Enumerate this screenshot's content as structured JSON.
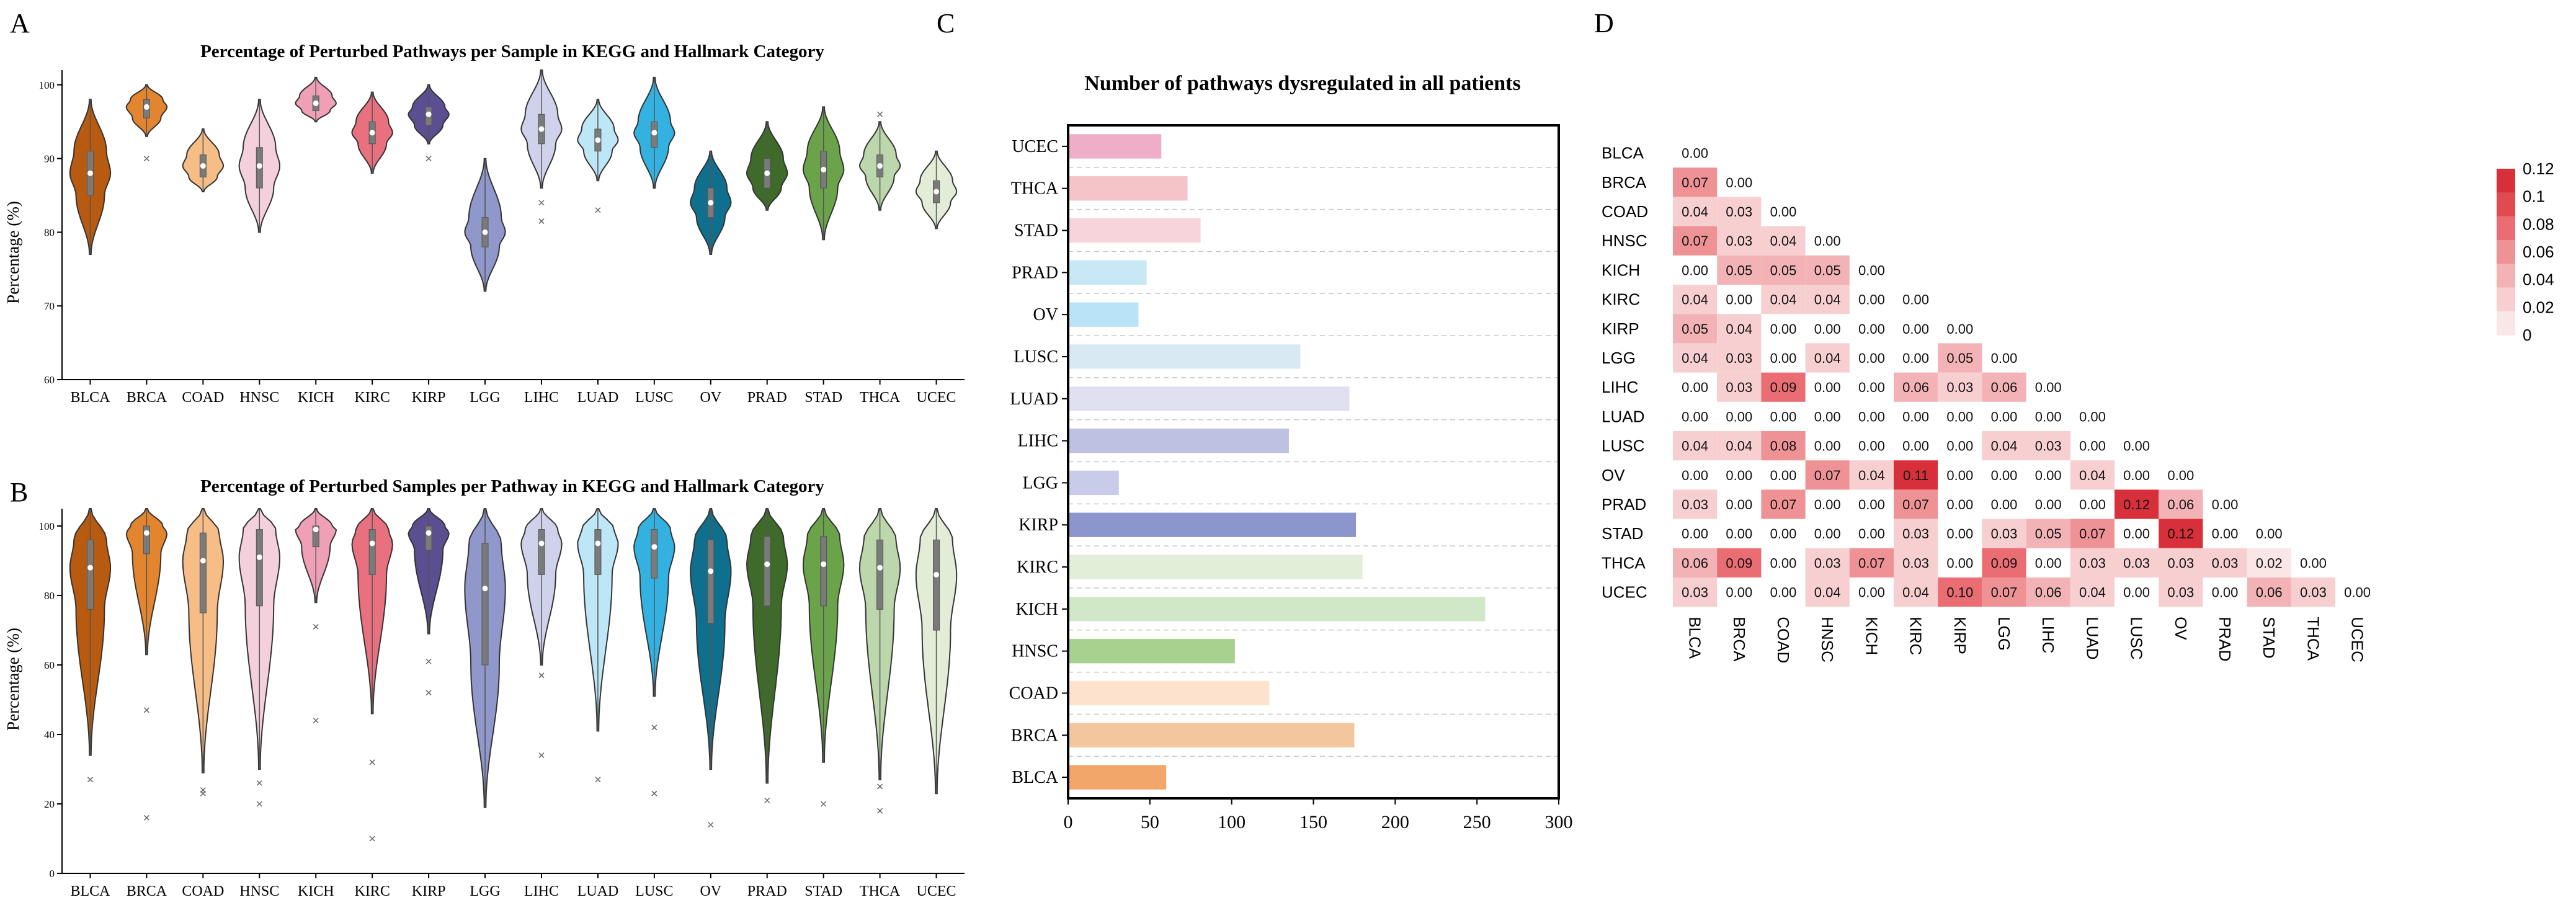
{
  "chart_data": [
    {
      "id": "A",
      "type": "violin",
      "panel_label": "A",
      "title": "Percentage of Perturbed Pathways per Sample in KEGG and Hallmark Category",
      "ylabel": "Percentage (%)",
      "ylim": [
        60,
        102
      ],
      "yticks": [
        60,
        70,
        80,
        90,
        100
      ],
      "categories": [
        "BLCA",
        "BRCA",
        "COAD",
        "HNSC",
        "KICH",
        "KIRC",
        "KIRP",
        "LGG",
        "LIHC",
        "LUAD",
        "LUSC",
        "OV",
        "PRAD",
        "STAD",
        "THCA",
        "UCEC"
      ],
      "colors": [
        "#b85a10",
        "#e2852e",
        "#f6bd87",
        "#f4cfdc",
        "#ef9fb6",
        "#e9707f",
        "#5b4e91",
        "#8f97cb",
        "#cfd2ea",
        "#bde7f7",
        "#33b1e1",
        "#0e6f8e",
        "#3e6b2a",
        "#6aa34a",
        "#bcd7ac",
        "#e2ecd6"
      ],
      "series": [
        {
          "name": "BLCA",
          "min": 77,
          "q1": 85,
          "median": 88,
          "q3": 91,
          "max": 98,
          "outliers": []
        },
        {
          "name": "BRCA",
          "min": 93,
          "q1": 95.5,
          "median": 97,
          "q3": 98,
          "max": 100,
          "outliers": [
            90
          ]
        },
        {
          "name": "COAD",
          "min": 85.5,
          "q1": 87.5,
          "median": 89,
          "q3": 90.5,
          "max": 94,
          "outliers": []
        },
        {
          "name": "HNSC",
          "min": 80,
          "q1": 86,
          "median": 89,
          "q3": 91.5,
          "max": 98,
          "outliers": []
        },
        {
          "name": "KICH",
          "min": 95,
          "q1": 96.5,
          "median": 97.5,
          "q3": 98.5,
          "max": 101,
          "outliers": []
        },
        {
          "name": "KIRC",
          "min": 88,
          "q1": 92,
          "median": 93.5,
          "q3": 95,
          "max": 99,
          "outliers": []
        },
        {
          "name": "KIRP",
          "min": 92,
          "q1": 94.5,
          "median": 96,
          "q3": 97,
          "max": 100,
          "outliers": [
            90
          ]
        },
        {
          "name": "LGG",
          "min": 72,
          "q1": 78,
          "median": 80,
          "q3": 82,
          "max": 90,
          "outliers": []
        },
        {
          "name": "LIHC",
          "min": 86,
          "q1": 92,
          "median": 94,
          "q3": 96,
          "max": 102,
          "outliers": [
            84,
            81.5
          ]
        },
        {
          "name": "LUAD",
          "min": 87,
          "q1": 91,
          "median": 92.5,
          "q3": 94,
          "max": 98,
          "outliers": [
            83
          ]
        },
        {
          "name": "LUSC",
          "min": 86,
          "q1": 91.5,
          "median": 93.5,
          "q3": 95,
          "max": 101,
          "outliers": []
        },
        {
          "name": "OV",
          "min": 77,
          "q1": 82,
          "median": 84,
          "q3": 86,
          "max": 91,
          "outliers": []
        },
        {
          "name": "PRAD",
          "min": 83,
          "q1": 86,
          "median": 88,
          "q3": 90,
          "max": 95,
          "outliers": []
        },
        {
          "name": "STAD",
          "min": 79,
          "q1": 86,
          "median": 88.5,
          "q3": 91,
          "max": 97,
          "outliers": []
        },
        {
          "name": "THCA",
          "min": 83,
          "q1": 87.5,
          "median": 89,
          "q3": 90.5,
          "max": 95,
          "outliers": [
            96
          ]
        },
        {
          "name": "UCEC",
          "min": 80.5,
          "q1": 84,
          "median": 85.5,
          "q3": 87,
          "max": 91,
          "outliers": []
        }
      ]
    },
    {
      "id": "B",
      "type": "violin",
      "panel_label": "B",
      "title": "Percentage of Perturbed Samples per Pathway in KEGG and Hallmark Category",
      "ylabel": "Percentage (%)",
      "ylim": [
        0,
        105
      ],
      "yticks": [
        0,
        20,
        40,
        60,
        80,
        100
      ],
      "categories": [
        "BLCA",
        "BRCA",
        "COAD",
        "HNSC",
        "KICH",
        "KIRC",
        "KIRP",
        "LGG",
        "LIHC",
        "LUAD",
        "LUSC",
        "OV",
        "PRAD",
        "STAD",
        "THCA",
        "UCEC"
      ],
      "colors": [
        "#b85a10",
        "#e2852e",
        "#f6bd87",
        "#f4cfdc",
        "#ef9fb6",
        "#e9707f",
        "#5b4e91",
        "#8f97cb",
        "#cfd2ea",
        "#bde7f7",
        "#33b1e1",
        "#0e6f8e",
        "#3e6b2a",
        "#6aa34a",
        "#bcd7ac",
        "#e2ecd6"
      ],
      "series": [
        {
          "name": "BLCA",
          "min": 34,
          "q1": 76,
          "median": 88,
          "q3": 96,
          "max": 105,
          "outliers": [
            27
          ]
        },
        {
          "name": "BRCA",
          "min": 63,
          "q1": 92,
          "median": 98,
          "q3": 100,
          "max": 105,
          "outliers": [
            47,
            16
          ]
        },
        {
          "name": "COAD",
          "min": 29,
          "q1": 75,
          "median": 90,
          "q3": 98,
          "max": 105,
          "outliers": [
            24,
            23
          ]
        },
        {
          "name": "HNSC",
          "min": 30,
          "q1": 77,
          "median": 91,
          "q3": 99,
          "max": 105,
          "outliers": [
            26,
            20
          ]
        },
        {
          "name": "KICH",
          "min": 78,
          "q1": 94,
          "median": 99,
          "q3": 100,
          "max": 105,
          "outliers": [
            71,
            44
          ]
        },
        {
          "name": "KIRC",
          "min": 46,
          "q1": 86,
          "median": 95,
          "q3": 99,
          "max": 105,
          "outliers": [
            32,
            10
          ]
        },
        {
          "name": "KIRP",
          "min": 69,
          "q1": 93,
          "median": 98,
          "q3": 100,
          "max": 105,
          "outliers": [
            61,
            52
          ]
        },
        {
          "name": "LGG",
          "min": 19,
          "q1": 60,
          "median": 82,
          "q3": 95,
          "max": 105,
          "outliers": []
        },
        {
          "name": "LIHC",
          "min": 60,
          "q1": 86,
          "median": 95,
          "q3": 99,
          "max": 105,
          "outliers": [
            57,
            34
          ]
        },
        {
          "name": "LUAD",
          "min": 41,
          "q1": 86,
          "median": 95,
          "q3": 99,
          "max": 105,
          "outliers": [
            27
          ]
        },
        {
          "name": "LUSC",
          "min": 51,
          "q1": 85,
          "median": 94,
          "q3": 99,
          "max": 105,
          "outliers": [
            42,
            23
          ]
        },
        {
          "name": "OV",
          "min": 30,
          "q1": 72,
          "median": 87,
          "q3": 96,
          "max": 105,
          "outliers": [
            14
          ]
        },
        {
          "name": "PRAD",
          "min": 26,
          "q1": 77,
          "median": 89,
          "q3": 97,
          "max": 105,
          "outliers": [
            21
          ]
        },
        {
          "name": "STAD",
          "min": 32,
          "q1": 77,
          "median": 89,
          "q3": 97,
          "max": 105,
          "outliers": [
            20
          ]
        },
        {
          "name": "THCA",
          "min": 27,
          "q1": 76,
          "median": 88,
          "q3": 96,
          "max": 105,
          "outliers": [
            25,
            18
          ]
        },
        {
          "name": "UCEC",
          "min": 23,
          "q1": 70,
          "median": 86,
          "q3": 96,
          "max": 105,
          "outliers": []
        }
      ]
    },
    {
      "id": "C",
      "type": "bar",
      "orientation": "horizontal",
      "panel_label": "C",
      "title": "Number of  pathways dysregulated in all patients",
      "categories": [
        "UCEC",
        "THCA",
        "STAD",
        "PRAD",
        "OV",
        "LUSC",
        "LUAD",
        "LIHC",
        "LGG",
        "KIRP",
        "KIRC",
        "KICH",
        "HNSC",
        "COAD",
        "BRCA",
        "BLCA"
      ],
      "values": [
        57,
        73,
        81,
        48,
        43,
        142,
        172,
        135,
        31,
        176,
        180,
        255,
        102,
        123,
        175,
        60
      ],
      "colors": [
        "#eeaec8",
        "#f5c4c9",
        "#f7d3db",
        "#c8e8f6",
        "#b9e3f6",
        "#d8e9f3",
        "#e1e0f1",
        "#bfc1e3",
        "#c9cbea",
        "#8c95cc",
        "#e3eed9",
        "#d0e8c8",
        "#a8d08e",
        "#fde2cd",
        "#f4c69d",
        "#f3a66a"
      ],
      "xlim": [
        0,
        300
      ],
      "xticks": [
        0,
        50,
        100,
        150,
        200,
        250,
        300
      ],
      "grid": true
    },
    {
      "id": "D",
      "type": "heatmap",
      "panel_label": "D",
      "rows": [
        "BLCA",
        "BRCA",
        "COAD",
        "HNSC",
        "KICH",
        "KIRC",
        "KIRP",
        "LGG",
        "LIHC",
        "LUAD",
        "LUSC",
        "OV",
        "PRAD",
        "STAD",
        "THCA",
        "UCEC"
      ],
      "cols": [
        "BLCA",
        "BRCA",
        "COAD",
        "HNSC",
        "KICH",
        "KIRC",
        "KIRP",
        "LGG",
        "LIHC",
        "LUAD",
        "LUSC",
        "OV",
        "PRAD",
        "STAD",
        "THCA",
        "UCEC"
      ],
      "values": [
        [
          0.0
        ],
        [
          0.07,
          0.0
        ],
        [
          0.04,
          0.03,
          0.0
        ],
        [
          0.07,
          0.03,
          0.04,
          0.0
        ],
        [
          0.0,
          0.05,
          0.05,
          0.05,
          0.0
        ],
        [
          0.04,
          0.0,
          0.04,
          0.04,
          0.0,
          0.0
        ],
        [
          0.05,
          0.04,
          0.0,
          0.0,
          0.0,
          0.0,
          0.0
        ],
        [
          0.04,
          0.03,
          0.0,
          0.04,
          0.0,
          0.0,
          0.05,
          0.0
        ],
        [
          0.0,
          0.03,
          0.09,
          0.0,
          0.0,
          0.06,
          0.03,
          0.06,
          0.0
        ],
        [
          0.0,
          0.0,
          0.0,
          0.0,
          0.0,
          0.0,
          0.0,
          0.0,
          0.0,
          0.0
        ],
        [
          0.04,
          0.04,
          0.08,
          0.0,
          0.0,
          0.0,
          0.0,
          0.04,
          0.03,
          0.0,
          0.0
        ],
        [
          0.0,
          0.0,
          0.0,
          0.07,
          0.04,
          0.11,
          0.0,
          0.0,
          0.0,
          0.04,
          0.0,
          0.0
        ],
        [
          0.03,
          0.0,
          0.07,
          0.0,
          0.0,
          0.07,
          0.0,
          0.0,
          0.0,
          0.0,
          0.12,
          0.06,
          0.0
        ],
        [
          0.0,
          0.0,
          0.0,
          0.0,
          0.0,
          0.03,
          0.0,
          0.03,
          0.05,
          0.07,
          0.0,
          0.12,
          0.0,
          0.0
        ],
        [
          0.06,
          0.09,
          0.0,
          0.03,
          0.07,
          0.03,
          0.0,
          0.09,
          0.0,
          0.03,
          0.03,
          0.03,
          0.03,
          0.02,
          0.0
        ],
        [
          0.03,
          0.0,
          0.0,
          0.04,
          0.0,
          0.04,
          0.1,
          0.07,
          0.06,
          0.04,
          0.0,
          0.03,
          0.0,
          0.06,
          0.03,
          0.0
        ]
      ],
      "vmin": 0,
      "vmax": 0.12,
      "colorbar_ticks": [
        "0.12",
        "0.1",
        "0.08",
        "0.06",
        "0.04",
        "0.02",
        "0"
      ],
      "colorbar_colors": [
        "#d7303a",
        "#e04b51",
        "#e96d72",
        "#ef9296",
        "#f3b3b6",
        "#f7cfd1",
        "#fae6e7"
      ]
    }
  ]
}
